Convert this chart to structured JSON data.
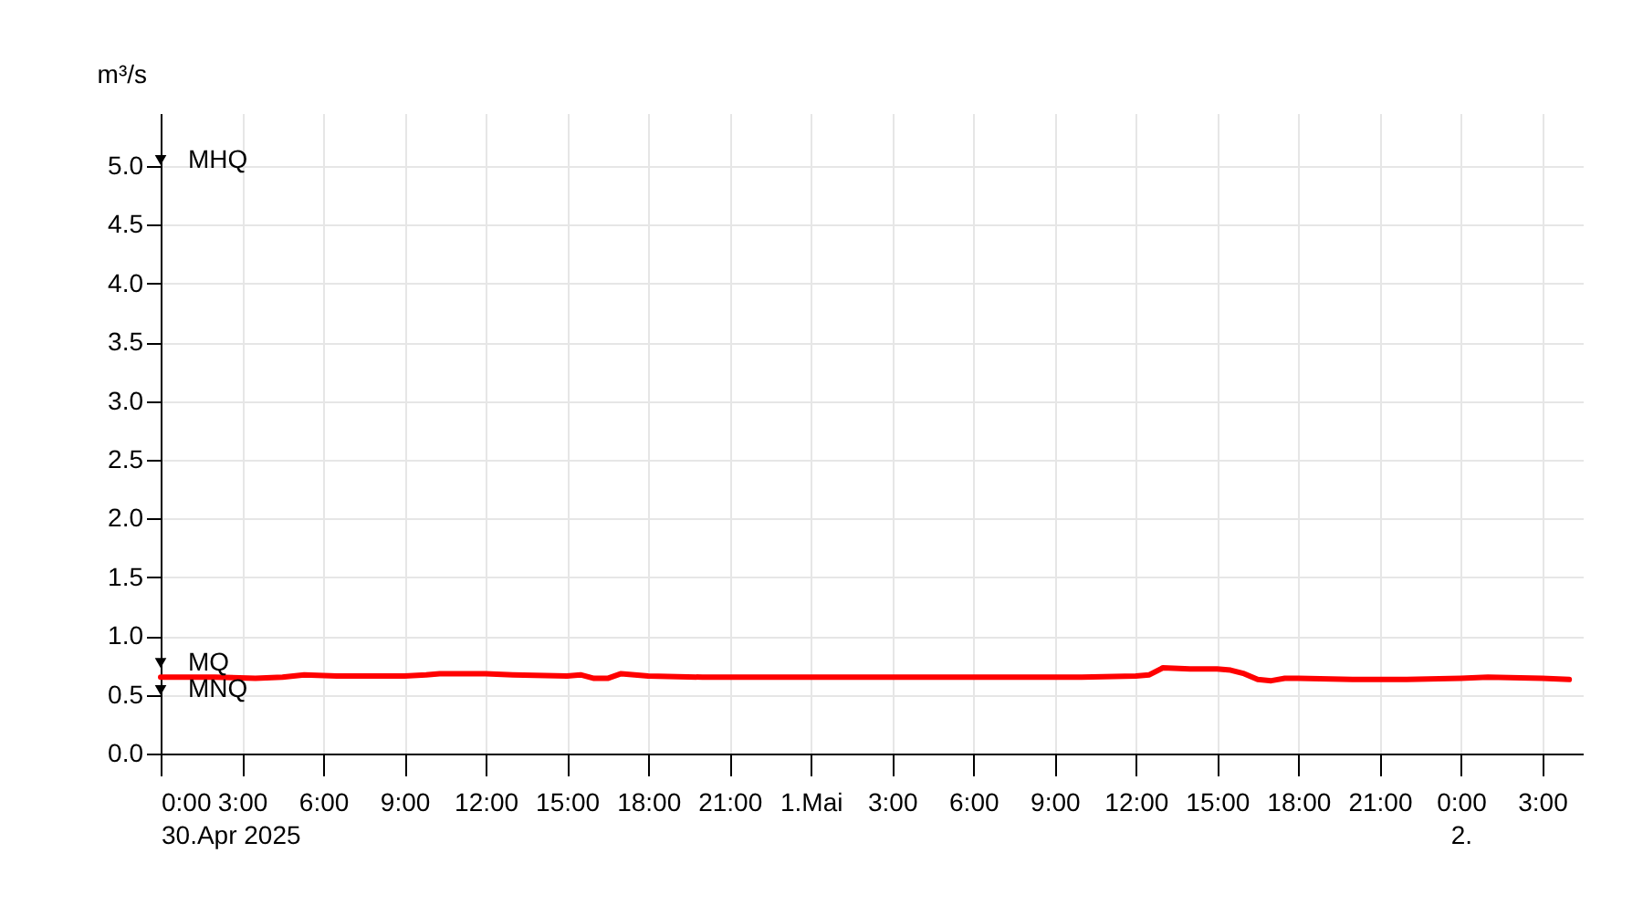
{
  "chart_data": {
    "type": "line",
    "ylabel": "m³/s",
    "x": [
      "2025-04-30T00:00",
      "2025-04-30T02:00",
      "2025-04-30T03:30",
      "2025-04-30T04:30",
      "2025-04-30T05:18",
      "2025-04-30T06:30",
      "2025-04-30T09:00",
      "2025-04-30T09:48",
      "2025-04-30T10:18",
      "2025-04-30T12:00",
      "2025-04-30T13:00",
      "2025-04-30T15:00",
      "2025-04-30T15:30",
      "2025-04-30T16:00",
      "2025-04-30T16:30",
      "2025-04-30T17:00",
      "2025-04-30T18:00",
      "2025-04-30T20:00",
      "2025-05-01T00:00",
      "2025-05-01T06:00",
      "2025-05-01T10:00",
      "2025-05-01T12:00",
      "2025-05-01T12:30",
      "2025-05-01T13:00",
      "2025-05-01T14:00",
      "2025-05-01T15:00",
      "2025-05-01T15:30",
      "2025-05-01T16:00",
      "2025-05-01T16:30",
      "2025-05-01T17:00",
      "2025-05-01T17:30",
      "2025-05-01T18:00",
      "2025-05-01T20:00",
      "2025-05-01T22:00",
      "2025-05-02T00:00",
      "2025-05-02T01:00",
      "2025-05-02T03:00",
      "2025-05-02T04:00"
    ],
    "series": [
      {
        "color": "#ff0000",
        "values": [
          0.65,
          0.65,
          0.64,
          0.65,
          0.67,
          0.66,
          0.66,
          0.67,
          0.68,
          0.68,
          0.67,
          0.66,
          0.67,
          0.64,
          0.64,
          0.68,
          0.66,
          0.65,
          0.65,
          0.65,
          0.65,
          0.66,
          0.67,
          0.73,
          0.72,
          0.72,
          0.71,
          0.68,
          0.63,
          0.62,
          0.64,
          0.64,
          0.63,
          0.63,
          0.64,
          0.65,
          0.64,
          0.63
        ]
      },
      {
        "type": "scatter",
        "name": "MHQ",
        "color": "#000000",
        "marker": "triangle_down",
        "x": [
          "2025-04-30T00:00"
        ],
        "values": [
          5.05
        ]
      },
      {
        "type": "scatter",
        "name": "MQ",
        "color": "#000000",
        "marker": "triangle_down",
        "x": [
          "2025-04-30T00:00"
        ],
        "values": [
          0.77
        ]
      },
      {
        "type": "scatter",
        "name": "MNQ",
        "color": "#000000",
        "marker": "triangle_down",
        "x": [
          "2025-04-30T00:00"
        ],
        "values": [
          0.54
        ]
      }
    ],
    "xlim": [
      "2025-04-30T00:00",
      "2025-05-02T04:30"
    ],
    "xticks": [
      {
        "value": "2025-04-30T00:00",
        "label": "0:00\n30.Apr 2025"
      },
      {
        "value": "2025-04-30T03:00",
        "label": "3:00"
      },
      {
        "value": "2025-04-30T06:00",
        "label": "6:00"
      },
      {
        "value": "2025-04-30T09:00",
        "label": "9:00"
      },
      {
        "value": "2025-04-30T12:00",
        "label": "12:00"
      },
      {
        "value": "2025-04-30T15:00",
        "label": "15:00"
      },
      {
        "value": "2025-04-30T18:00",
        "label": "18:00"
      },
      {
        "value": "2025-04-30T21:00",
        "label": "21:00"
      },
      {
        "value": "2025-05-01T00:00",
        "label": "1.Mai"
      },
      {
        "value": "2025-05-01T03:00",
        "label": "3:00"
      },
      {
        "value": "2025-05-01T06:00",
        "label": "6:00"
      },
      {
        "value": "2025-05-01T09:00",
        "label": "9:00"
      },
      {
        "value": "2025-05-01T12:00",
        "label": "12:00"
      },
      {
        "value": "2025-05-01T15:00",
        "label": "15:00"
      },
      {
        "value": "2025-05-01T18:00",
        "label": "18:00"
      },
      {
        "value": "2025-05-01T21:00",
        "label": "21:00"
      },
      {
        "value": "2025-05-02T00:00",
        "label": "0:00\n2."
      },
      {
        "value": "2025-05-02T03:00",
        "label": "3:00"
      }
    ],
    "ylim": [
      0,
      5.45
    ],
    "yticks": [
      {
        "value": 0,
        "label": "0.0"
      },
      {
        "value": 0.5,
        "label": "0.5"
      },
      {
        "value": 1,
        "label": "1.0"
      },
      {
        "value": 1.5,
        "label": "1.5"
      },
      {
        "value": 2,
        "label": "2.0"
      },
      {
        "value": 2.5,
        "label": "2.5"
      },
      {
        "value": 3,
        "label": "3.0"
      },
      {
        "value": 3.5,
        "label": "3.5"
      },
      {
        "value": 4,
        "label": "4.0"
      },
      {
        "value": 4.5,
        "label": "4.5"
      },
      {
        "value": 5,
        "label": "5.0"
      }
    ],
    "grid": true,
    "marker": "none",
    "line_style": "solid"
  }
}
